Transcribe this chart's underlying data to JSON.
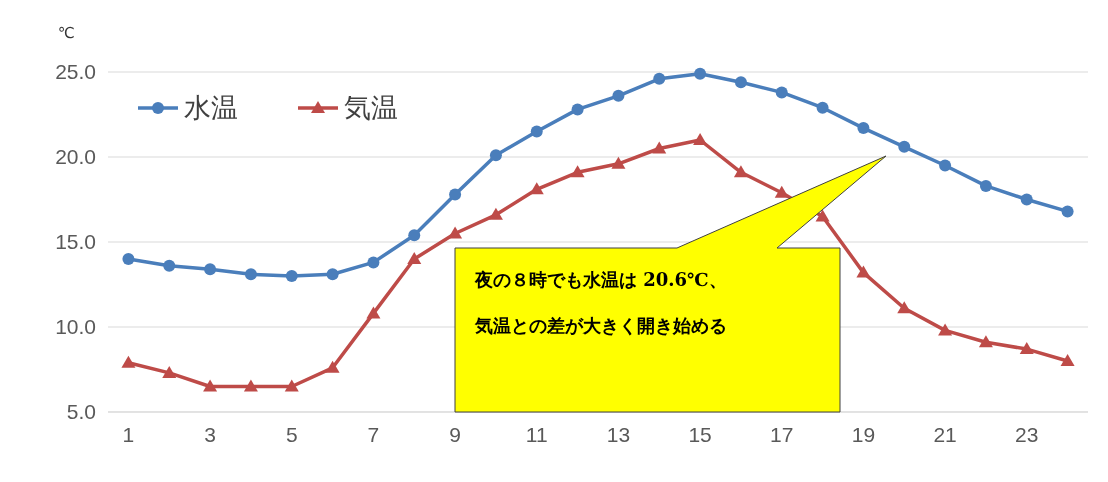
{
  "chart_data": {
    "type": "line",
    "ylabel": "℃",
    "x": [
      1,
      2,
      3,
      4,
      5,
      6,
      7,
      8,
      9,
      10,
      11,
      12,
      13,
      14,
      15,
      16,
      17,
      18,
      19,
      20,
      21,
      22,
      23,
      24
    ],
    "xlim": [
      0.5,
      24.5
    ],
    "xticks": [
      1,
      3,
      5,
      7,
      9,
      11,
      13,
      15,
      17,
      19,
      21,
      23
    ],
    "ylim": [
      5,
      25
    ],
    "yticks": [
      {
        "value": 5,
        "label": "5.0"
      },
      {
        "value": 10,
        "label": "10.0"
      },
      {
        "value": 15,
        "label": "15.0"
      },
      {
        "value": 20,
        "label": "20.0"
      },
      {
        "value": 25,
        "label": "25.0"
      }
    ],
    "grid": "y",
    "legend": "top left",
    "series": [
      {
        "name": "水温",
        "color": "#4a7ebb",
        "marker": "circle",
        "values": [
          14.0,
          13.6,
          13.4,
          13.1,
          13.0,
          13.1,
          13.8,
          15.4,
          17.8,
          20.1,
          21.5,
          22.8,
          23.6,
          24.6,
          24.9,
          24.4,
          23.8,
          22.9,
          21.7,
          20.6,
          19.5,
          18.3,
          17.5,
          16.8
        ]
      },
      {
        "name": "気温",
        "color": "#be4b48",
        "marker": "triangle",
        "values": [
          7.9,
          7.3,
          6.5,
          6.5,
          6.5,
          7.6,
          10.8,
          14.0,
          15.5,
          16.6,
          18.1,
          19.1,
          19.6,
          20.5,
          21.0,
          19.1,
          17.9,
          16.5,
          13.2,
          11.1,
          9.8,
          9.1,
          8.7,
          8.0
        ]
      }
    ],
    "annotations": [
      "夜の８時でも水温は 20.6℃、気温との差が大きく開き始める"
    ]
  }
}
